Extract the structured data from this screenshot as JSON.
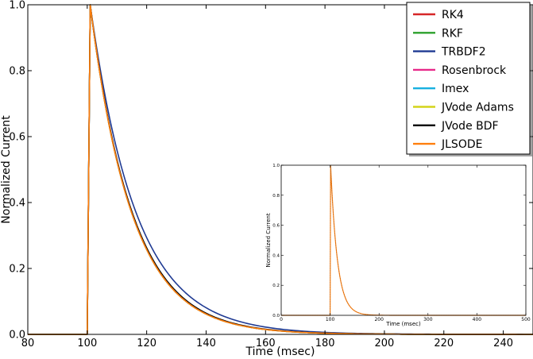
{
  "chart_data": [
    {
      "type": "line",
      "xlabel": "Time (msec)",
      "ylabel": "Normalized Current",
      "xlim": [
        80,
        250
      ],
      "ylim": [
        0,
        1.0
      ],
      "x_ticks": [
        80,
        100,
        120,
        140,
        160,
        180,
        200,
        220,
        240
      ],
      "y_ticks": [
        0.0,
        0.2,
        0.4,
        0.6,
        0.8,
        1.0
      ],
      "x_tick_labels": [
        "80",
        "100",
        "120",
        "140",
        "160",
        "180",
        "200",
        "220",
        "240"
      ],
      "y_tick_labels": [
        "0.0",
        "0.2",
        "0.4",
        "0.6",
        "0.8",
        "1.0"
      ],
      "grid": false,
      "legend_position": "top-right",
      "stimulus_onset": 100,
      "peak_time": 101,
      "series": [
        {
          "name": "RK4",
          "color": "#d62728",
          "decay_tau": 14.0
        },
        {
          "name": "RKF",
          "color": "#2ca02c",
          "decay_tau": 14.0
        },
        {
          "name": "TRBDF2",
          "color": "#1f3a93",
          "decay_tau": 15.5
        },
        {
          "name": "Rosenbrock",
          "color": "#e7298a",
          "decay_tau": 14.0
        },
        {
          "name": "Imex",
          "color": "#17b0e0",
          "decay_tau": 14.0
        },
        {
          "name": "JVode Adams",
          "color": "#d4d41a",
          "decay_tau": 14.0
        },
        {
          "name": "JVode BDF",
          "color": "#000000",
          "decay_tau": 14.2
        },
        {
          "name": "JLSODE",
          "color": "#ff7f0e",
          "decay_tau": 14.0
        }
      ]
    },
    {
      "type": "line",
      "role": "inset",
      "xlabel": "Time (msec)",
      "ylabel": "Normalized Current",
      "xlim": [
        0,
        500
      ],
      "ylim": [
        0,
        1.0
      ],
      "x_ticks": [
        0,
        100,
        200,
        300,
        400,
        500
      ],
      "y_ticks": [
        0.0,
        0.2,
        0.4,
        0.6,
        0.8,
        1.0
      ],
      "x_tick_labels": [
        "0",
        "100",
        "200",
        "300",
        "400",
        "500"
      ],
      "y_tick_labels": [
        "0.0",
        "0.2",
        "0.4",
        "0.6",
        "0.8",
        "1.0"
      ],
      "stimulus_onset": 100,
      "peak_time": 101,
      "decay_tau": 14.0
    }
  ]
}
